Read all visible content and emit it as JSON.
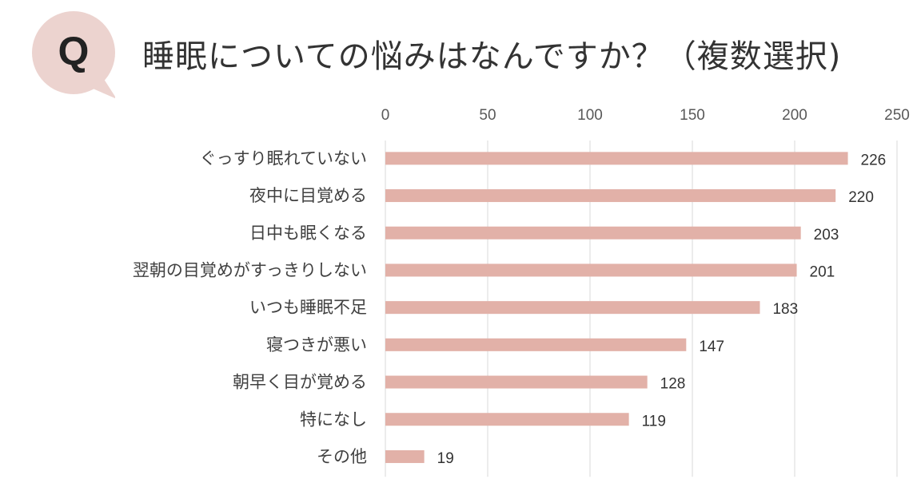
{
  "header": {
    "badge_letter": "Q",
    "badge_color": "#ecd3cf",
    "title": "睡眠についての悩みはなんですか？（複数選択)"
  },
  "chart_data": {
    "type": "bar",
    "orientation": "horizontal",
    "categories": [
      "ぐっすり眠れていない",
      "夜中に目覚める",
      "日中も眠くなる",
      "翌朝の目覚めがすっきりしない",
      "いつも睡眠不足",
      "寝つきが悪い",
      "朝早く目が覚める",
      "特になし",
      "その他"
    ],
    "values": [
      226,
      220,
      203,
      201,
      183,
      147,
      128,
      119,
      19
    ],
    "xlim": [
      0,
      250
    ],
    "xticks": [
      0,
      50,
      100,
      150,
      200,
      250
    ],
    "x_axis_position": "top",
    "grid": true,
    "data_labels": true,
    "bar_color": "#e2b1a8"
  }
}
